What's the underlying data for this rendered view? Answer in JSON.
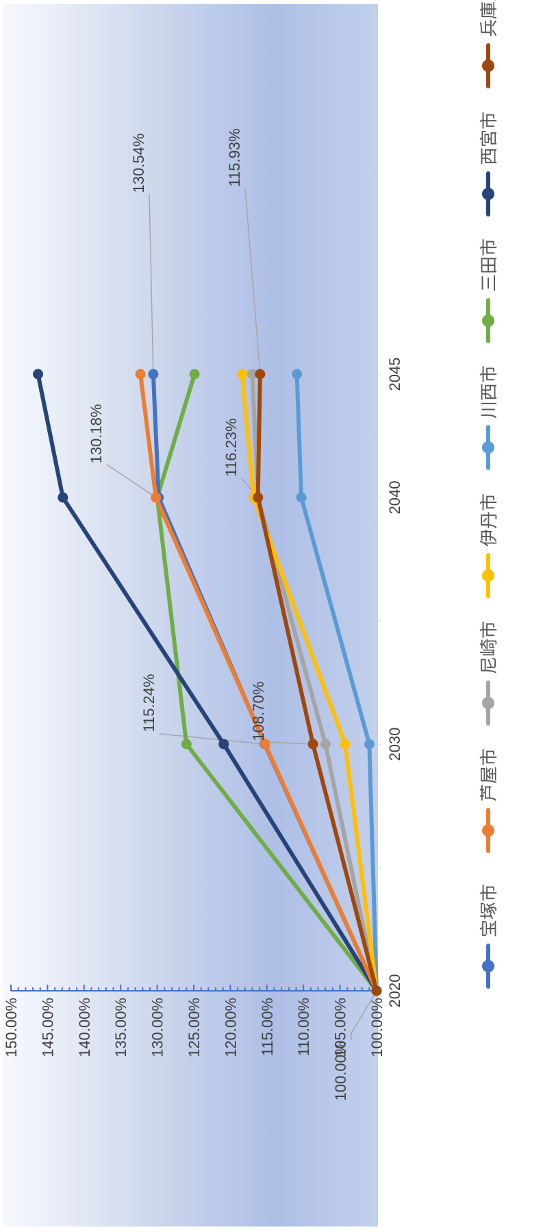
{
  "chart_data": {
    "type": "line",
    "x": [
      "2020",
      "2030",
      "2040",
      "2045"
    ],
    "y_ticks": [
      "100.00%",
      "105.00%",
      "110.00%",
      "115.00%",
      "120.00%",
      "125.00%",
      "130.00%",
      "135.00%",
      "140.00%",
      "145.00%",
      "150.00%"
    ],
    "ylim": [
      100,
      150
    ],
    "legend_position": "bottom",
    "series": [
      {
        "name": "宝塚市",
        "color": "#4472C4",
        "values": [
          100.0,
          115.3,
          129.8,
          130.54
        ]
      },
      {
        "name": "芦屋市",
        "color": "#ED7D31",
        "values": [
          100.0,
          115.24,
          130.18,
          132.3
        ]
      },
      {
        "name": "尼崎市",
        "color": "#A5A5A5",
        "values": [
          100.0,
          107.0,
          116.2,
          117.0
        ]
      },
      {
        "name": "伊丹市",
        "color": "#FFC000",
        "values": [
          100.0,
          104.3,
          116.8,
          118.4
        ]
      },
      {
        "name": "川西市",
        "color": "#5B9BD5",
        "values": [
          100.0,
          101.0,
          110.3,
          110.9
        ]
      },
      {
        "name": "三田市",
        "color": "#70AD47",
        "values": [
          100.0,
          126.0,
          130.0,
          124.9
        ]
      },
      {
        "name": "西宮市",
        "color": "#264478",
        "values": [
          100.0,
          120.9,
          142.9,
          146.3
        ]
      },
      {
        "name": "兵庫県",
        "color": "#9E480E",
        "values": [
          100.0,
          108.7,
          116.23,
          115.93
        ]
      }
    ],
    "annotations": [
      {
        "label": "100.00%",
        "series": 7,
        "index": 0
      },
      {
        "label": "108.70%",
        "series": 7,
        "index": 1
      },
      {
        "label": "116.23%",
        "series": 7,
        "index": 2
      },
      {
        "label": "115.93%",
        "series": 7,
        "index": 3
      },
      {
        "label": "115.24%",
        "series": 1,
        "index": 1
      },
      {
        "label": "130.18%",
        "series": 1,
        "index": 2
      },
      {
        "label": "130.54%",
        "series": 0,
        "index": 3
      }
    ]
  }
}
